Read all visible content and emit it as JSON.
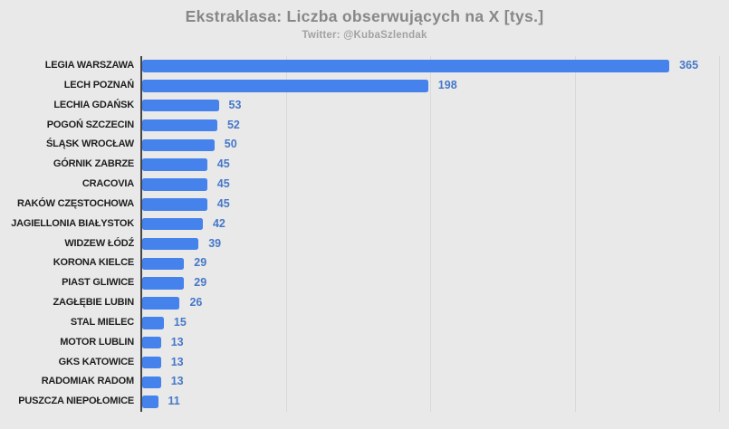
{
  "header": {
    "title": "Ekstraklasa: Liczba obserwujących na X [tys.]",
    "subtitle": "Twitter: @KubaSzlendak"
  },
  "chart_data": {
    "type": "bar",
    "orientation": "horizontal",
    "title": "Ekstraklasa: Liczba obserwujących na X [tys.]",
    "subtitle": "Twitter: @KubaSzlendak",
    "categories": [
      "LEGIA WARSZAWA",
      "LECH POZNAŃ",
      "LECHIA GDAŃSK",
      "POGOŃ SZCZECIN",
      "ŚLĄSK WROCŁAW",
      "GÓRNIK ZABRZE",
      "CRACOVIA",
      "RAKÓW CZĘSTOCHOWA",
      "JAGIELLONIA BIAŁYSTOK",
      "WIDZEW ŁÓDŹ",
      "KORONA KIELCE",
      "PIAST GLIWICE",
      "ZAGŁĘBIE LUBIN",
      "STAL MIELEC",
      "MOTOR LUBLIN",
      "GKS KATOWICE",
      "RADOMIAK RADOM",
      "PUSZCZA NIEPOŁOMICE"
    ],
    "values": [
      365,
      198,
      53,
      52,
      50,
      45,
      45,
      45,
      42,
      39,
      29,
      29,
      26,
      15,
      13,
      13,
      13,
      11
    ],
    "xlabel": "",
    "ylabel": "",
    "xlim": [
      0,
      400
    ],
    "gridlines": [
      100,
      200,
      300,
      400
    ],
    "grid": true,
    "legend_position": "none",
    "value_labels": true,
    "colors": {
      "bar": "#4582ec",
      "value_label": "#4678c8",
      "category_label": "#1e1e1e",
      "title": "#878787",
      "subtitle": "#a2a2a2",
      "background": "#e9e9e9",
      "gridline": "#d9d9d9",
      "axis": "#454545"
    }
  }
}
